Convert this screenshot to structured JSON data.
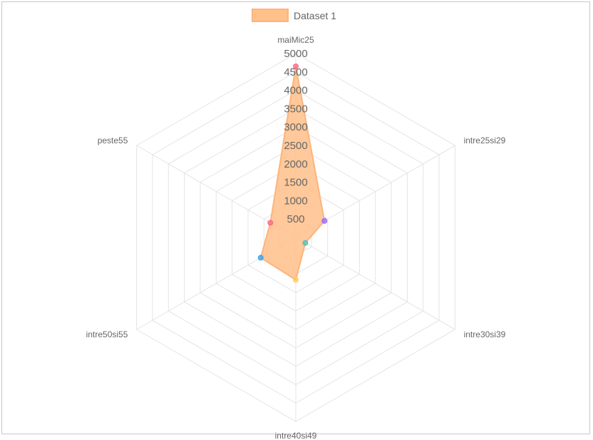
{
  "chart_data": {
    "type": "radar",
    "labels": [
      "maiMic25",
      "intre25si29",
      "intre30si39",
      "intre40si49",
      "intre50si55",
      "peste55"
    ],
    "series": [
      {
        "name": "Dataset 1",
        "values": [
          4650,
          900,
          300,
          1150,
          1100,
          800
        ],
        "fill_color": "#ffc08a",
        "border_color": "#ffb37a"
      }
    ],
    "point_colors": [
      "#ff6384",
      "#9966ff",
      "#4bc0c0",
      "#ffcd56",
      "#36a2eb",
      "#ff6384"
    ],
    "rlim": [
      0,
      5000
    ],
    "ticks": [
      "500",
      "1000",
      "1500",
      "2000",
      "2500",
      "3000",
      "3500",
      "4000",
      "4500",
      "5000"
    ],
    "legend_position": "top",
    "grid": true
  }
}
